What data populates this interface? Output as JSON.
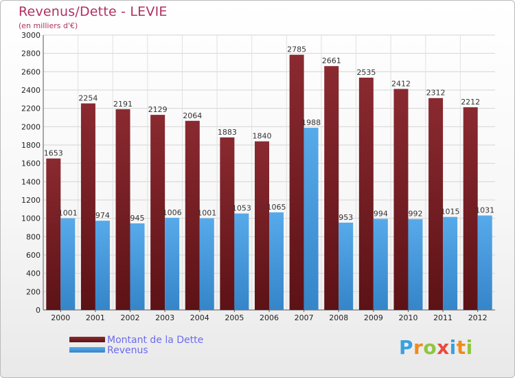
{
  "header": {
    "title": "Revenus/Dette - LEVIE",
    "subtitle": "(en milliers d'€)"
  },
  "chart_data": {
    "type": "bar",
    "title": "Revenus/Dette - LEVIE",
    "subtitle": "(en milliers d'€)",
    "xlabel": "",
    "ylabel": "",
    "categories": [
      "2000",
      "2001",
      "2002",
      "2003",
      "2004",
      "2005",
      "2006",
      "2007",
      "2008",
      "2009",
      "2010",
      "2011",
      "2012"
    ],
    "series": [
      {
        "name": "Montant de la Dette",
        "values": [
          1653,
          2254,
          2191,
          2129,
          2064,
          1883,
          1840,
          2785,
          2661,
          2535,
          2412,
          2312,
          2212
        ],
        "color": "#7a2127"
      },
      {
        "name": "Revenus",
        "values": [
          1001,
          974,
          945,
          1006,
          1001,
          1053,
          1065,
          1988,
          953,
          994,
          992,
          1015,
          1031
        ],
        "color": "#4fa3e6"
      }
    ],
    "ylim": [
      0,
      3000
    ],
    "yticks": [
      0,
      200,
      400,
      600,
      800,
      1000,
      1200,
      1400,
      1600,
      1800,
      2000,
      2200,
      2400,
      2600,
      2800,
      3000
    ],
    "grid": true,
    "legend_position": "bottom-left"
  },
  "legend": {
    "items": [
      {
        "label": "Montant de la Dette",
        "color": "#7a2127"
      },
      {
        "label": "Revenus",
        "color": "#4fa3e6"
      }
    ]
  },
  "logo": {
    "letters": [
      "P",
      "r",
      "o",
      "x",
      "i",
      "t",
      "i"
    ],
    "colors": [
      "#3aa0e0",
      "#f08a1d",
      "#8ec63f",
      "#e84c3d",
      "#3aa0e0",
      "#f08a1d",
      "#8ec63f"
    ]
  }
}
